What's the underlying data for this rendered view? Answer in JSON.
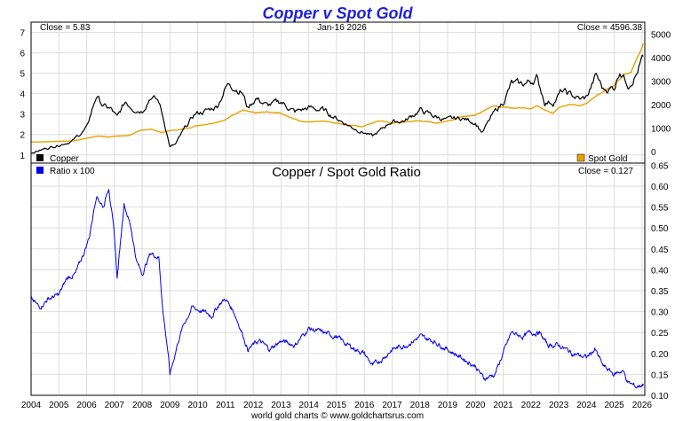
{
  "title": "Copper v Spot Gold",
  "footer": "world gold charts © www.goldchartsrus.com",
  "colors": {
    "title": "#1f1fe0",
    "copper": "#000000",
    "gold": "#e6a200",
    "ratio": "#0000e8",
    "grid": "#dddddd"
  },
  "chart_data": [
    {
      "type": "line",
      "title": "Copper v Spot Gold",
      "header_left": "Close = 5.83",
      "header_center": "Jan-16  2026",
      "header_right": "Close = 4596.38",
      "x_range": [
        2004,
        2026.1
      ],
      "y_left": {
        "label": "Copper",
        "range": [
          0.6,
          7.5
        ],
        "ticks": [
          1,
          2,
          3,
          4,
          5,
          6,
          7
        ],
        "tick_labels": [
          "1",
          "2",
          "3",
          "4",
          "5",
          "6",
          "7"
        ]
      },
      "y_right": {
        "label": "Spot Gold",
        "range": [
          -500,
          5500
        ],
        "ticks": [
          0,
          1000,
          2000,
          3000,
          4000,
          5000
        ],
        "tick_labels": [
          "0",
          "1000",
          "2000",
          "3000",
          "4000",
          "5000"
        ]
      },
      "series": [
        {
          "name": "Copper",
          "axis": "left",
          "color": "#000000",
          "points": [
            [
              2004,
              1.1
            ],
            [
              2004.5,
              1.3
            ],
            [
              2005,
              1.5
            ],
            [
              2005.5,
              1.7
            ],
            [
              2006,
              2.3
            ],
            [
              2006.35,
              3.9
            ],
            [
              2006.6,
              3.4
            ],
            [
              2006.9,
              3.2
            ],
            [
              2007.1,
              2.8
            ],
            [
              2007.4,
              3.6
            ],
            [
              2007.7,
              3.3
            ],
            [
              2008,
              3.2
            ],
            [
              2008.3,
              3.9
            ],
            [
              2008.6,
              3.6
            ],
            [
              2008.8,
              2.6
            ],
            [
              2009,
              1.4
            ],
            [
              2009.2,
              1.5
            ],
            [
              2009.5,
              2.2
            ],
            [
              2009.9,
              3.0
            ],
            [
              2010.4,
              3.2
            ],
            [
              2010.7,
              3.4
            ],
            [
              2011.0,
              4.3
            ],
            [
              2011.15,
              4.5
            ],
            [
              2011.6,
              4.1
            ],
            [
              2011.8,
              3.3
            ],
            [
              2012.1,
              3.8
            ],
            [
              2012.5,
              3.4
            ],
            [
              2013,
              3.6
            ],
            [
              2013.5,
              3.1
            ],
            [
              2014,
              3.3
            ],
            [
              2014.5,
              3.2
            ],
            [
              2015,
              2.8
            ],
            [
              2015.5,
              2.4
            ],
            [
              2016,
              2.1
            ],
            [
              2016.3,
              1.9
            ],
            [
              2016.6,
              2.2
            ],
            [
              2016.9,
              2.6
            ],
            [
              2017.5,
              2.7
            ],
            [
              2018,
              3.2
            ],
            [
              2018.5,
              2.9
            ],
            [
              2019,
              2.7
            ],
            [
              2019.5,
              2.8
            ],
            [
              2020,
              2.6
            ],
            [
              2020.25,
              2.1
            ],
            [
              2020.6,
              2.9
            ],
            [
              2021,
              3.6
            ],
            [
              2021.3,
              4.5
            ],
            [
              2021.6,
              4.4
            ],
            [
              2022,
              4.6
            ],
            [
              2022.2,
              4.8
            ],
            [
              2022.5,
              3.6
            ],
            [
              2022.8,
              3.6
            ],
            [
              2023.1,
              4.1
            ],
            [
              2023.5,
              3.9
            ],
            [
              2023.8,
              3.7
            ],
            [
              2024,
              3.8
            ],
            [
              2024.35,
              4.9
            ],
            [
              2024.6,
              4.2
            ],
            [
              2025,
              4.3
            ],
            [
              2025.2,
              5.2
            ],
            [
              2025.5,
              4.5
            ],
            [
              2025.8,
              5.0
            ],
            [
              2026.05,
              5.83
            ]
          ]
        },
        {
          "name": "Spot Gold",
          "axis": "right",
          "color": "#e6a200",
          "points": [
            [
              2004,
              400
            ],
            [
              2004.5,
              405
            ],
            [
              2005,
              430
            ],
            [
              2005.5,
              440
            ],
            [
              2006,
              560
            ],
            [
              2006.4,
              650
            ],
            [
              2006.8,
              620
            ],
            [
              2007,
              640
            ],
            [
              2007.5,
              670
            ],
            [
              2008,
              900
            ],
            [
              2008.3,
              950
            ],
            [
              2008.7,
              800
            ],
            [
              2009,
              880
            ],
            [
              2009.5,
              950
            ],
            [
              2010,
              1100
            ],
            [
              2010.5,
              1200
            ],
            [
              2011,
              1350
            ],
            [
              2011.65,
              1800
            ],
            [
              2012,
              1650
            ],
            [
              2012.5,
              1650
            ],
            [
              2013,
              1600
            ],
            [
              2013.4,
              1400
            ],
            [
              2013.8,
              1250
            ],
            [
              2014.5,
              1300
            ],
            [
              2015,
              1200
            ],
            [
              2015.9,
              1060
            ],
            [
              2016.5,
              1300
            ],
            [
              2017,
              1200
            ],
            [
              2018,
              1300
            ],
            [
              2018.7,
              1200
            ],
            [
              2019,
              1290
            ],
            [
              2019.6,
              1500
            ],
            [
              2020,
              1550
            ],
            [
              2020.6,
              1950
            ],
            [
              2021,
              1850
            ],
            [
              2022,
              1850
            ],
            [
              2022.2,
              1950
            ],
            [
              2022.8,
              1650
            ],
            [
              2023,
              1850
            ],
            [
              2023.4,
              2000
            ],
            [
              2023.8,
              1950
            ],
            [
              2024,
              2050
            ],
            [
              2024.3,
              2350
            ],
            [
              2024.8,
              2700
            ],
            [
              2025,
              2800
            ],
            [
              2025.3,
              3200
            ],
            [
              2025.6,
              3350
            ],
            [
              2025.8,
              3900
            ],
            [
              2026.05,
              4596
            ]
          ]
        }
      ],
      "legend": [
        "Copper",
        "Spot Gold"
      ]
    },
    {
      "type": "line",
      "title": "Copper  /  Spot Gold Ratio",
      "header_right": "Close = 0.127",
      "x_range": [
        2004,
        2026.1
      ],
      "x_ticks": [
        2004,
        2005,
        2006,
        2007,
        2008,
        2009,
        2010,
        2011,
        2012,
        2013,
        2014,
        2015,
        2016,
        2017,
        2018,
        2019,
        2020,
        2021,
        2022,
        2023,
        2024,
        2025,
        2026
      ],
      "x_tick_labels": [
        "2004",
        "2005",
        "2006",
        "2007",
        "2008",
        "2009",
        "2010",
        "2011",
        "2012",
        "2013",
        "2014",
        "2015",
        "2016",
        "2017",
        "2018",
        "2019",
        "2020",
        "2021",
        "2022",
        "2023",
        "2024",
        "2025",
        "2026"
      ],
      "y_right": {
        "range": [
          0.1,
          0.655
        ],
        "ticks": [
          0.1,
          0.15,
          0.2,
          0.25,
          0.3,
          0.35,
          0.4,
          0.45,
          0.5,
          0.55,
          0.6,
          0.65
        ],
        "tick_labels": [
          "0.10",
          "0.15",
          "0.20",
          "0.25",
          "0.30",
          "0.35",
          "0.40",
          "0.45",
          "0.50",
          "0.55",
          "0.60",
          "0.65"
        ]
      },
      "series": [
        {
          "name": "Ratio x 100",
          "color": "#0000e8",
          "points": [
            [
              2004,
              0.33
            ],
            [
              2004.3,
              0.31
            ],
            [
              2004.6,
              0.33
            ],
            [
              2005,
              0.34
            ],
            [
              2005.3,
              0.38
            ],
            [
              2005.6,
              0.39
            ],
            [
              2005.9,
              0.44
            ],
            [
              2006.1,
              0.48
            ],
            [
              2006.35,
              0.58
            ],
            [
              2006.6,
              0.55
            ],
            [
              2006.8,
              0.6
            ],
            [
              2007,
              0.48
            ],
            [
              2007.1,
              0.38
            ],
            [
              2007.35,
              0.56
            ],
            [
              2007.6,
              0.5
            ],
            [
              2007.8,
              0.42
            ],
            [
              2008,
              0.39
            ],
            [
              2008.3,
              0.44
            ],
            [
              2008.6,
              0.43
            ],
            [
              2008.75,
              0.3
            ],
            [
              2008.9,
              0.22
            ],
            [
              2009.0,
              0.15
            ],
            [
              2009.3,
              0.23
            ],
            [
              2009.5,
              0.27
            ],
            [
              2009.8,
              0.31
            ],
            [
              2010.2,
              0.3
            ],
            [
              2010.5,
              0.29
            ],
            [
              2010.8,
              0.32
            ],
            [
              2011.0,
              0.33
            ],
            [
              2011.3,
              0.3
            ],
            [
              2011.6,
              0.25
            ],
            [
              2011.8,
              0.21
            ],
            [
              2012.2,
              0.23
            ],
            [
              2012.6,
              0.21
            ],
            [
              2013,
              0.23
            ],
            [
              2013.5,
              0.22
            ],
            [
              2014,
              0.26
            ],
            [
              2014.5,
              0.25
            ],
            [
              2015,
              0.24
            ],
            [
              2015.4,
              0.22
            ],
            [
              2016,
              0.2
            ],
            [
              2016.3,
              0.17
            ],
            [
              2016.7,
              0.19
            ],
            [
              2017,
              0.21
            ],
            [
              2017.5,
              0.22
            ],
            [
              2018,
              0.24
            ],
            [
              2018.5,
              0.23
            ],
            [
              2019,
              0.21
            ],
            [
              2019.5,
              0.19
            ],
            [
              2020,
              0.17
            ],
            [
              2020.3,
              0.14
            ],
            [
              2020.7,
              0.15
            ],
            [
              2021,
              0.2
            ],
            [
              2021.3,
              0.25
            ],
            [
              2021.7,
              0.24
            ],
            [
              2022,
              0.25
            ],
            [
              2022.3,
              0.25
            ],
            [
              2022.6,
              0.22
            ],
            [
              2023,
              0.22
            ],
            [
              2023.5,
              0.2
            ],
            [
              2024,
              0.19
            ],
            [
              2024.3,
              0.21
            ],
            [
              2024.6,
              0.17
            ],
            [
              2025,
              0.15
            ],
            [
              2025.3,
              0.16
            ],
            [
              2025.5,
              0.13
            ],
            [
              2025.8,
              0.12
            ],
            [
              2026.05,
              0.127
            ]
          ]
        }
      ],
      "legend": [
        "Ratio x 100"
      ]
    }
  ]
}
